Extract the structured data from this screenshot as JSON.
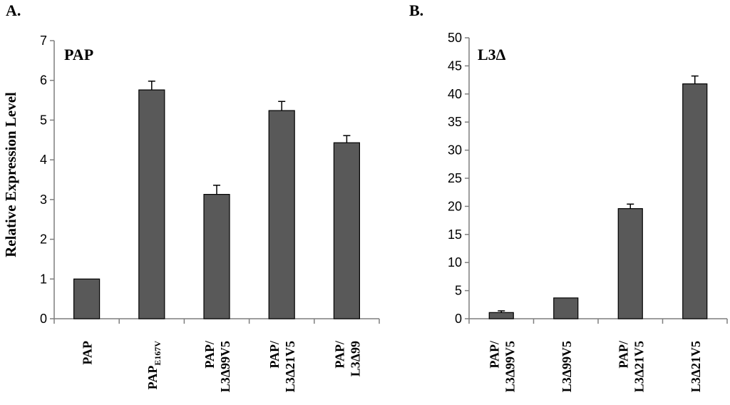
{
  "colors": {
    "bar_fill": "#595959",
    "bar_stroke": "#000000",
    "axis": "#7f7f7f",
    "text": "#000000"
  },
  "chart_data": [
    {
      "type": "bar",
      "panel_label": "A.",
      "title": "PAP",
      "ylabel": "Relative Expression Level",
      "xlabel": "",
      "ylim": [
        0,
        7
      ],
      "yticks": [
        "0",
        "1",
        "2",
        "3",
        "4",
        "5",
        "6",
        "7"
      ],
      "categories": [
        {
          "lines": [
            "PAP"
          ]
        },
        {
          "lines": [
            "PAP"
          ],
          "subscript": "E167V"
        },
        {
          "lines": [
            "PAP/",
            "L3Δ99V5"
          ]
        },
        {
          "lines": [
            "PAP/",
            "L3Δ21V5"
          ]
        },
        {
          "lines": [
            "PAP/",
            "L3Δ99"
          ]
        }
      ],
      "values": [
        1.0,
        5.76,
        3.13,
        5.24,
        4.43
      ],
      "errors": [
        0,
        0.22,
        0.23,
        0.23,
        0.18
      ]
    },
    {
      "type": "bar",
      "panel_label": "B.",
      "title": "L3Δ",
      "ylabel": "",
      "xlabel": "",
      "ylim": [
        0,
        50
      ],
      "yticks": [
        "0",
        "5",
        "10",
        "15",
        "20",
        "25",
        "30",
        "35",
        "40",
        "45",
        "50"
      ],
      "categories": [
        {
          "lines": [
            "PAP/",
            "L3Δ99V5"
          ]
        },
        {
          "lines": [
            "L3Δ99V5"
          ]
        },
        {
          "lines": [
            "PAP/",
            "L3Δ21V5"
          ]
        },
        {
          "lines": [
            "L3Δ21V5"
          ]
        }
      ],
      "values": [
        1.1,
        3.7,
        19.6,
        41.8
      ],
      "errors": [
        0.3,
        0,
        0.8,
        1.4
      ]
    }
  ]
}
